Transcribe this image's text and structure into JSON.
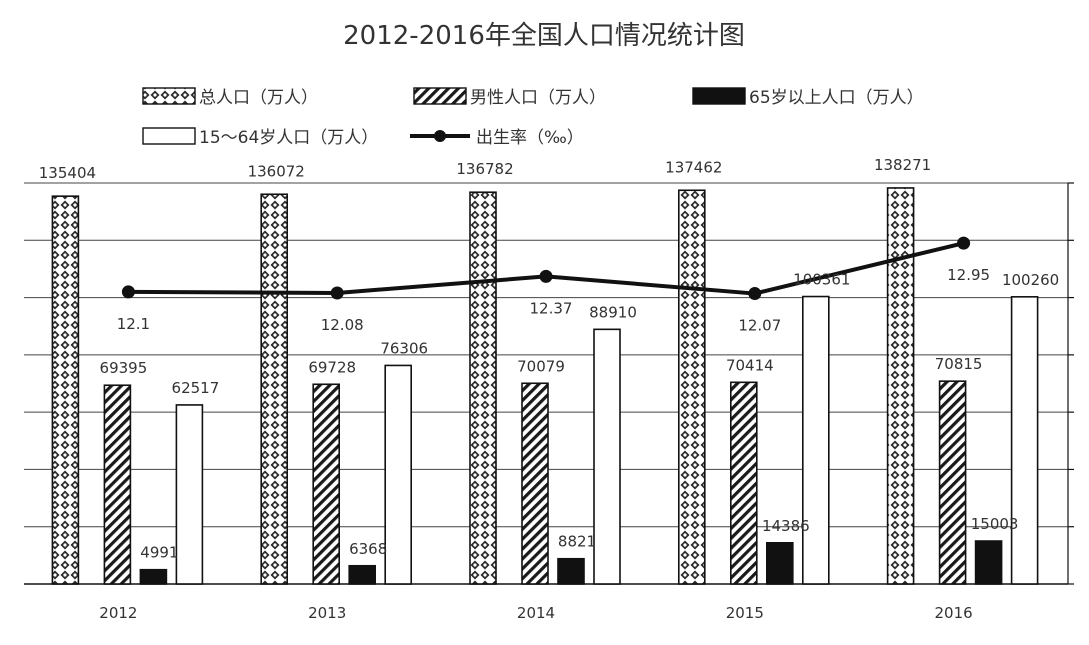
{
  "chart_data": {
    "type": "bar",
    "title": "2012-2016年全国人口情况统计图",
    "categories": [
      "2012",
      "2013",
      "2014",
      "2015",
      "2016"
    ],
    "series": [
      {
        "name": "总人口（万人）",
        "kind": "bar",
        "pattern": "dots",
        "values": [
          135404,
          136072,
          136782,
          137462,
          138271
        ]
      },
      {
        "name": "男性人口（万人）",
        "kind": "bar",
        "pattern": "hatch",
        "values": [
          69395,
          69728,
          70079,
          70414,
          70815
        ]
      },
      {
        "name": "65岁以上人口（万人）",
        "kind": "bar",
        "pattern": "solid",
        "values": [
          4991,
          6368,
          8821,
          14386,
          15003
        ]
      },
      {
        "name": "15～64岁人口（万人）",
        "kind": "bar",
        "pattern": "empty",
        "values": [
          62517,
          76306,
          88910,
          100361,
          100260
        ]
      },
      {
        "name": "出生率（‰）",
        "kind": "line",
        "values": [
          12.1,
          12.08,
          12.37,
          12.07,
          12.95
        ]
      }
    ],
    "ylim": [
      0,
      140000
    ],
    "line_ylim": [
      7,
      14
    ],
    "grid": true,
    "legend_position": "top",
    "colors": {
      "ink": "#111111",
      "background": "#ffffff",
      "grid": "#444444"
    }
  }
}
